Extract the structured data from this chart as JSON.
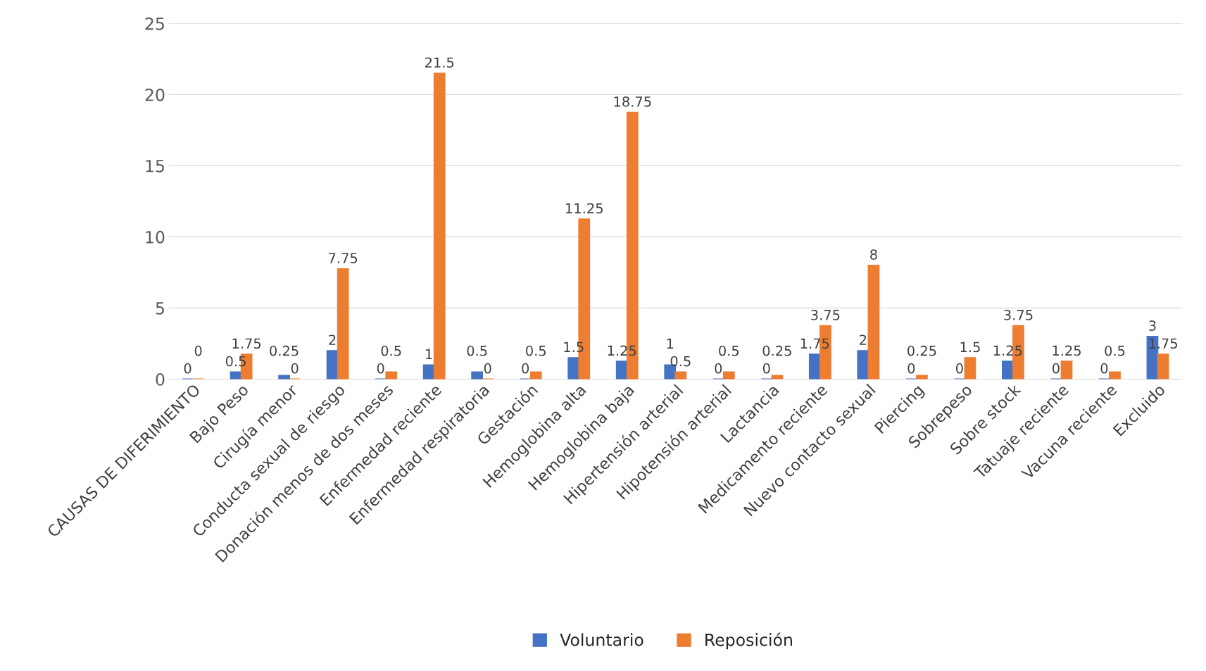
{
  "chart_data": {
    "type": "bar",
    "categories": [
      "CAUSAS DE DIFERIMIENTO",
      "Bajo Peso",
      "Cirugía menor",
      "Conducta sexual de riesgo",
      "Donación menos de dos meses",
      "Enfermedad reciente",
      "Enfermedad respiratoria",
      "Gestación",
      "Hemoglobina alta",
      "Hemoglobina baja",
      "Hipertensión arterial",
      "Hipotensión arterial",
      "Lactancia",
      "Medicamento reciente",
      "Nuevo contacto sexual",
      "Piercing",
      "Sobrepeso",
      "Sobre stock",
      "Tatuaje reciente",
      "Vacuna reciente",
      "Excluido"
    ],
    "series": [
      {
        "name": "Voluntario",
        "color": "#4472c4",
        "values": [
          0,
          0.5,
          0.25,
          2,
          0,
          1,
          0.5,
          0,
          1.5,
          1.25,
          1,
          0,
          0,
          1.75,
          2,
          0,
          0,
          1.25,
          0,
          0,
          3
        ]
      },
      {
        "name": "Reposición",
        "color": "#ed7d31",
        "values": [
          0,
          1.75,
          0,
          7.75,
          0.5,
          21.5,
          0,
          0.5,
          11.25,
          18.75,
          0.5,
          0.5,
          0.25,
          3.75,
          8,
          0.25,
          1.5,
          3.75,
          1.25,
          0.5,
          1.75
        ]
      }
    ],
    "ylim": [
      0,
      25
    ],
    "yticks": [
      0,
      5,
      10,
      15,
      20,
      25
    ],
    "grid": "y",
    "legend": "bottom",
    "data_labels": true
  }
}
